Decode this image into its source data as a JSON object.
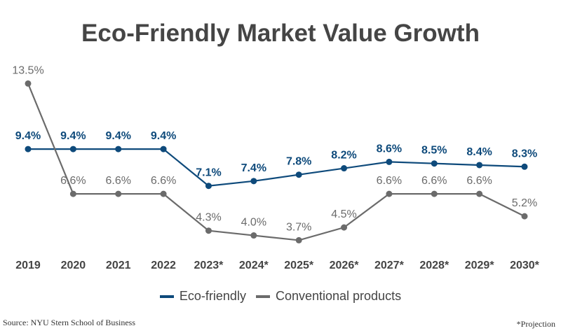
{
  "chart_data": {
    "type": "line",
    "title": "Eco-Friendly Market Value Growth",
    "categories": [
      "2019",
      "2020",
      "2021",
      "2022",
      "2023*",
      "2024*",
      "2025*",
      "2026*",
      "2027*",
      "2028*",
      "2029*",
      "2030*"
    ],
    "series": [
      {
        "name": "Eco-friendly",
        "color": "#0e4a7b",
        "values": [
          9.4,
          9.4,
          9.4,
          9.4,
          7.1,
          7.4,
          7.8,
          8.2,
          8.6,
          8.5,
          8.4,
          8.3
        ],
        "labels": [
          "9.4%",
          "9.4%",
          "9.4%",
          "9.4%",
          "7.1%",
          "7.4%",
          "7.8%",
          "8.2%",
          "8.6%",
          "8.5%",
          "8.4%",
          "8.3%"
        ]
      },
      {
        "name": "Conventional products",
        "color": "#6b6b6b",
        "values": [
          13.5,
          6.6,
          6.6,
          6.6,
          4.3,
          4.0,
          3.7,
          4.5,
          6.6,
          6.6,
          6.6,
          5.2
        ],
        "labels": [
          "13.5%",
          "6.6%",
          "6.6%",
          "6.6%",
          "4.3%",
          "4.0%",
          "3.7%",
          "4.5%",
          "6.6%",
          "6.6%",
          "6.6%",
          "5.2%"
        ]
      }
    ],
    "xlabel": "",
    "ylabel": "",
    "ylim": [
      0,
      14
    ],
    "grid": false,
    "legend_position": "bottom"
  },
  "footer": {
    "source": "Source: NYU Stern School of Business",
    "note": "*Projection"
  }
}
